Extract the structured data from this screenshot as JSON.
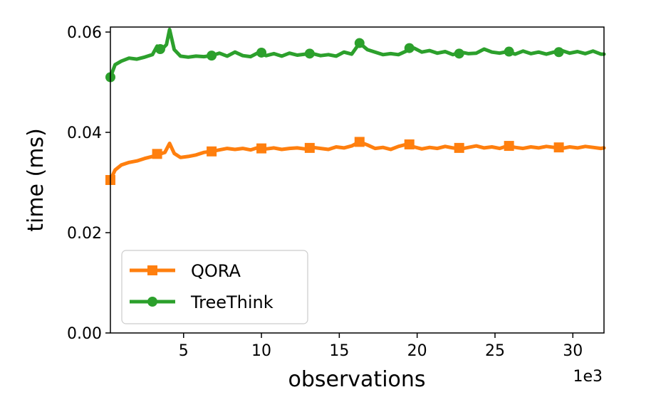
{
  "chart_data": {
    "type": "line",
    "xlabel": "observations",
    "ylabel": "time (ms)",
    "x_offset_label": "1e3",
    "xlim": [
      0.3,
      32
    ],
    "ylim": [
      0,
      0.061
    ],
    "xticks": [
      5,
      10,
      15,
      20,
      25,
      30
    ],
    "xtick_labels": [
      "5",
      "10",
      "15",
      "20",
      "25",
      "30"
    ],
    "yticks": [
      0.0,
      0.02,
      0.04,
      0.06
    ],
    "ytick_labels": [
      "0.00",
      "0.02",
      "0.04",
      "0.06"
    ],
    "legend_position": "lower-left",
    "grid": false,
    "series": [
      {
        "name": "QORA",
        "color": "#ff7f0e",
        "marker": "square",
        "x": [
          0.3,
          0.6,
          1.0,
          1.5,
          2.0,
          2.5,
          3.0,
          3.5,
          3.8,
          4.1,
          4.4,
          4.8,
          5.3,
          5.8,
          6.3,
          6.8,
          7.3,
          7.8,
          8.3,
          8.8,
          9.3,
          9.8,
          10.3,
          10.8,
          11.3,
          11.8,
          12.3,
          12.8,
          13.3,
          13.8,
          14.3,
          14.8,
          15.3,
          15.8,
          16.3,
          16.8,
          17.3,
          17.8,
          18.3,
          18.8,
          19.3,
          19.8,
          20.3,
          20.8,
          21.3,
          21.8,
          22.3,
          22.8,
          23.3,
          23.8,
          24.3,
          24.8,
          25.3,
          25.8,
          26.3,
          26.8,
          27.3,
          27.8,
          28.3,
          28.8,
          29.3,
          29.8,
          30.3,
          30.8,
          31.3,
          31.8,
          32.0
        ],
        "y": [
          0.0305,
          0.0325,
          0.0335,
          0.034,
          0.0343,
          0.0348,
          0.0352,
          0.0357,
          0.036,
          0.0378,
          0.0358,
          0.035,
          0.0352,
          0.0355,
          0.036,
          0.0362,
          0.0365,
          0.0368,
          0.0366,
          0.0368,
          0.0365,
          0.037,
          0.0367,
          0.0369,
          0.0366,
          0.0368,
          0.0369,
          0.0367,
          0.037,
          0.0368,
          0.0366,
          0.0371,
          0.0369,
          0.0373,
          0.0381,
          0.0375,
          0.0368,
          0.037,
          0.0366,
          0.0372,
          0.0376,
          0.0371,
          0.0367,
          0.037,
          0.0368,
          0.0372,
          0.0369,
          0.0367,
          0.037,
          0.0373,
          0.0369,
          0.0371,
          0.0368,
          0.0373,
          0.037,
          0.0368,
          0.0371,
          0.0369,
          0.0372,
          0.037,
          0.0368,
          0.0371,
          0.0369,
          0.0372,
          0.037,
          0.0368,
          0.0369
        ],
        "marker_x": [
          0.3,
          3.3,
          6.8,
          10.0,
          13.1,
          16.3,
          19.5,
          22.7,
          25.9,
          29.1
        ],
        "marker_y": [
          0.0305,
          0.0357,
          0.0362,
          0.0368,
          0.0369,
          0.0381,
          0.0376,
          0.0369,
          0.0373,
          0.037
        ]
      },
      {
        "name": "TreeThink",
        "color": "#2ca02c",
        "marker": "circle",
        "x": [
          0.3,
          0.6,
          1.0,
          1.5,
          2.0,
          2.5,
          3.0,
          3.3,
          3.6,
          3.9,
          4.1,
          4.4,
          4.8,
          5.3,
          5.8,
          6.3,
          6.8,
          7.3,
          7.8,
          8.3,
          8.8,
          9.3,
          9.8,
          10.3,
          10.8,
          11.3,
          11.8,
          12.3,
          12.8,
          13.3,
          13.8,
          14.3,
          14.8,
          15.3,
          15.8,
          16.3,
          16.8,
          17.3,
          17.8,
          18.3,
          18.8,
          19.3,
          19.8,
          20.3,
          20.8,
          21.3,
          21.8,
          22.3,
          22.8,
          23.3,
          23.8,
          24.3,
          24.8,
          25.3,
          25.8,
          26.3,
          26.8,
          27.3,
          27.8,
          28.3,
          28.8,
          29.3,
          29.8,
          30.3,
          30.8,
          31.3,
          31.8,
          32.0
        ],
        "y": [
          0.051,
          0.0535,
          0.0542,
          0.0548,
          0.0546,
          0.055,
          0.0555,
          0.0572,
          0.0565,
          0.0575,
          0.0605,
          0.0565,
          0.0552,
          0.055,
          0.0552,
          0.0551,
          0.0553,
          0.0558,
          0.0552,
          0.056,
          0.0553,
          0.0551,
          0.0559,
          0.0553,
          0.0557,
          0.0552,
          0.0558,
          0.0554,
          0.0556,
          0.0557,
          0.0553,
          0.0555,
          0.0552,
          0.056,
          0.0556,
          0.0578,
          0.0565,
          0.056,
          0.0555,
          0.0557,
          0.0555,
          0.0562,
          0.0568,
          0.056,
          0.0563,
          0.0558,
          0.0561,
          0.0555,
          0.056,
          0.0557,
          0.0558,
          0.0566,
          0.056,
          0.0558,
          0.0561,
          0.0556,
          0.0562,
          0.0557,
          0.056,
          0.0556,
          0.056,
          0.0563,
          0.0558,
          0.0561,
          0.0557,
          0.0562,
          0.0556,
          0.0556
        ],
        "marker_x": [
          0.3,
          3.5,
          6.8,
          10.0,
          13.1,
          16.3,
          19.5,
          22.7,
          25.9,
          29.1
        ],
        "marker_y": [
          0.051,
          0.0566,
          0.0553,
          0.0559,
          0.0557,
          0.0578,
          0.0568,
          0.0557,
          0.0561,
          0.056
        ]
      }
    ]
  }
}
